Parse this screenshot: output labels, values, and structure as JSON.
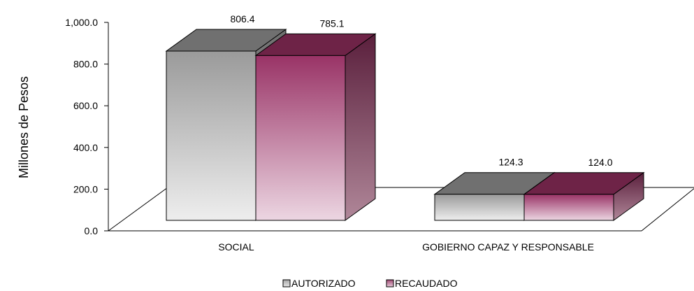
{
  "chart_data": {
    "type": "bar",
    "categories": [
      "SOCIAL",
      "GOBIERNO CAPAZ Y RESPONSABLE"
    ],
    "series": [
      {
        "name": "AUTORIZADO",
        "values": [
          806.4,
          124.3
        ],
        "labels": [
          "806.4",
          "124.3"
        ],
        "color": "#a6a6a6"
      },
      {
        "name": "RECAUDADO",
        "values": [
          785.1,
          124.0
        ],
        "labels": [
          "785.1",
          "124.0"
        ],
        "color": "#993366"
      }
    ],
    "ylabel": "Millones de Pesos",
    "xlabel": "",
    "ylim": [
      0,
      1000
    ],
    "yticks": [
      {
        "value": 0,
        "label": "0.0"
      },
      {
        "value": 200,
        "label": "200.0"
      },
      {
        "value": 400,
        "label": "400.0"
      },
      {
        "value": 600,
        "label": "600.0"
      },
      {
        "value": 800,
        "label": "800.0"
      },
      {
        "value": 1000,
        "label": "1,000.0"
      }
    ],
    "grid": false,
    "legend_position": "bottom",
    "style": "3d"
  }
}
